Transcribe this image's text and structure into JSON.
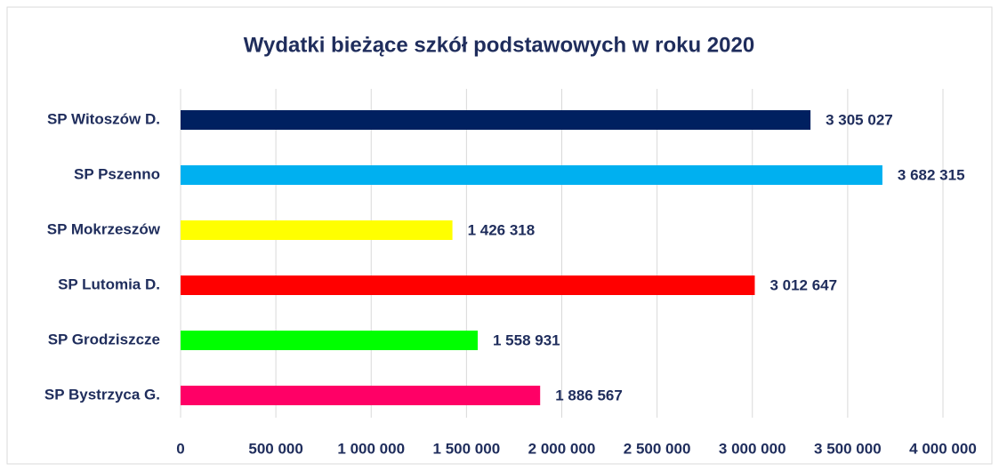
{
  "chart_data": {
    "type": "barh",
    "title": "Wydatki bieżące szkół podstawowych w roku 2020",
    "categories": [
      "SP Witoszów D.",
      "SP Pszenno",
      "SP Mokrzeszów",
      "SP Lutomia D.",
      "SP Grodziszcze",
      "SP Bystrzyca G."
    ],
    "values": [
      3305027,
      3682315,
      1426318,
      3012647,
      1558931,
      1886567
    ],
    "value_labels": [
      "3 305 027",
      "3 682 315",
      "1 426 318",
      "3 012 647",
      "1 558 931",
      "1 886 567"
    ],
    "colors": [
      "#002060",
      "#00b0f0",
      "#ffff00",
      "#ff0000",
      "#00ff00",
      "#ff0066"
    ],
    "xlim": [
      0,
      4000000
    ],
    "xticks": [
      0,
      {
        "value": 500000,
        "label": "500 000"
      },
      {
        "value": 1000000,
        "label": "1 000 000"
      },
      {
        "value": 1500000,
        "label": "1 500 000"
      },
      {
        "value": 2000000,
        "label": "2 000 000"
      },
      {
        "value": 2500000,
        "label": "2 500 000"
      },
      {
        "value": 3000000,
        "label": "3 000 000"
      },
      {
        "value": 3500000,
        "label": "3 500 000"
      },
      {
        "value": 4000000,
        "label": "4 000 000"
      }
    ],
    "grid": true
  }
}
